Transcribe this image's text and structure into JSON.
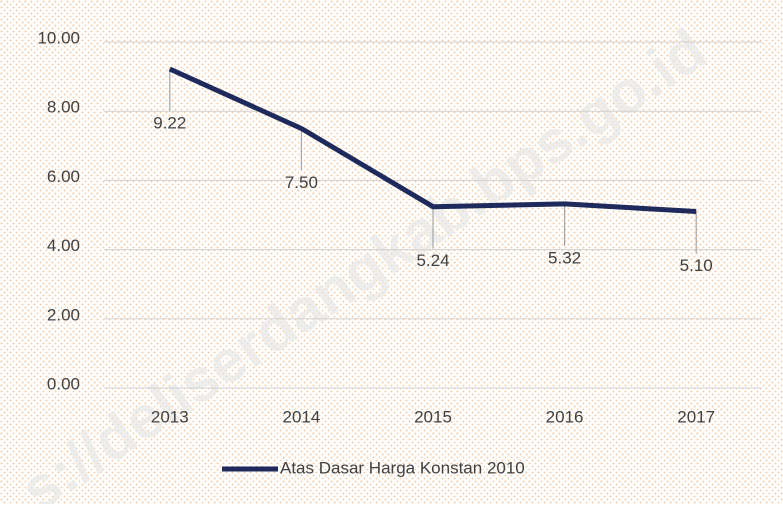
{
  "chart_data": {
    "type": "line",
    "categories": [
      "2013",
      "2014",
      "2015",
      "2016",
      "2017"
    ],
    "series": [
      {
        "name": "Atas Dasar Harga Konstan 2010",
        "color": "#1f2a5c",
        "values": [
          9.22,
          7.5,
          5.24,
          5.32,
          5.1
        ],
        "value_labels": [
          "9.22",
          "7.50",
          "5.24",
          "5.32",
          "5.10"
        ]
      }
    ],
    "ylim": [
      0,
      10
    ],
    "yticks": [
      {
        "value": 0,
        "label": "0.00"
      },
      {
        "value": 2,
        "label": "2.00"
      },
      {
        "value": 4,
        "label": "4.00"
      },
      {
        "value": 6,
        "label": "6.00"
      },
      {
        "value": 8,
        "label": "8.00"
      },
      {
        "value": 10,
        "label": "10.00"
      }
    ],
    "grid": true,
    "legend": "bottom",
    "watermark": "s://deliserdangkab.bps.go.id"
  }
}
